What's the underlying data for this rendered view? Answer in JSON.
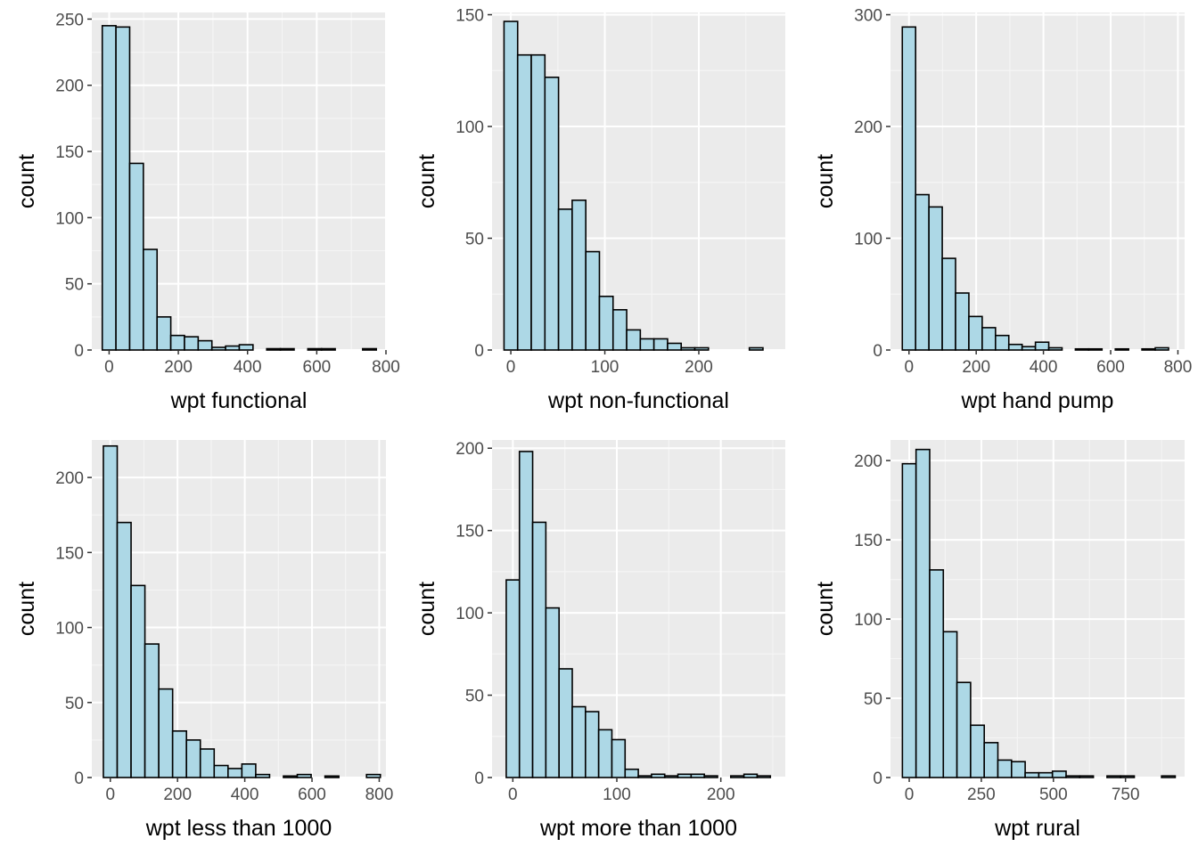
{
  "colors": {
    "panel_background": "#ebebeb",
    "grid_major": "#ffffff",
    "bar_fill": "#add8e6",
    "bar_stroke": "#000000",
    "tick_text": "#4d4d4d",
    "axis_title": "#000000"
  },
  "chart_data": [
    {
      "type": "bar",
      "title": "",
      "xlabel": "wpt functional",
      "ylabel": "count",
      "grid": true,
      "xlim": [
        -50,
        800
      ],
      "ylim": [
        0,
        255
      ],
      "xticks": [
        0,
        200,
        400,
        600,
        800
      ],
      "yticks": [
        0,
        50,
        100,
        150,
        200,
        250
      ],
      "bin_width": 39.6,
      "bin_start": -19.8,
      "values": [
        245,
        244,
        141,
        76,
        25,
        11,
        10,
        7,
        2,
        3,
        4,
        0,
        1,
        1,
        0,
        1,
        1,
        0,
        0,
        1
      ]
    },
    {
      "type": "bar",
      "title": "",
      "xlabel": "wpt non-functional",
      "ylabel": "count",
      "grid": true,
      "xlim": [
        -20,
        292
      ],
      "ylim": [
        0,
        151
      ],
      "xticks": [
        0,
        100,
        200
      ],
      "yticks": [
        0,
        50,
        100,
        150
      ],
      "bin_width": 14.5,
      "bin_start": -7.25,
      "values": [
        147,
        132,
        132,
        122,
        63,
        67,
        44,
        24,
        18,
        9,
        5,
        5,
        3,
        1,
        1,
        0,
        0,
        0,
        1
      ]
    },
    {
      "type": "bar",
      "title": "",
      "xlabel": "wpt hand pump",
      "ylabel": "count",
      "grid": true,
      "xlim": [
        -55,
        820
      ],
      "ylim": [
        0,
        302
      ],
      "xticks": [
        0,
        200,
        400,
        600,
        800
      ],
      "yticks": [
        0,
        100,
        200,
        300
      ],
      "bin_width": 39.6,
      "bin_start": -19.8,
      "values": [
        289,
        139,
        128,
        82,
        51,
        30,
        20,
        13,
        5,
        3,
        7,
        2,
        0,
        1,
        1,
        0,
        1,
        0,
        1,
        2
      ]
    },
    {
      "type": "bar",
      "title": "",
      "xlabel": "wpt less than 1000",
      "ylabel": "count",
      "grid": true,
      "xlim": [
        -55,
        820
      ],
      "ylim": [
        0,
        225
      ],
      "xticks": [
        0,
        200,
        400,
        600,
        800
      ],
      "yticks": [
        0,
        50,
        100,
        150,
        200
      ],
      "bin_width": 41.2,
      "bin_start": -20.6,
      "values": [
        221,
        170,
        128,
        89,
        59,
        31,
        25,
        19,
        8,
        6,
        9,
        2,
        0,
        1,
        2,
        0,
        1,
        0,
        0,
        2
      ]
    },
    {
      "type": "bar",
      "title": "",
      "xlabel": "wpt more than 1000",
      "ylabel": "count",
      "grid": true,
      "xlim": [
        -20,
        262
      ],
      "ylim": [
        0,
        205
      ],
      "xticks": [
        0,
        100,
        200
      ],
      "yticks": [
        0,
        50,
        100,
        150,
        200
      ],
      "bin_width": 12.7,
      "bin_start": -6.35,
      "values": [
        120,
        198,
        155,
        103,
        66,
        43,
        40,
        29,
        23,
        5,
        1,
        2,
        1,
        2,
        2,
        1,
        0,
        1,
        2,
        1
      ]
    },
    {
      "type": "bar",
      "title": "",
      "xlabel": "wpt rural",
      "ylabel": "count",
      "grid": true,
      "xlim": [
        -65,
        955
      ],
      "ylim": [
        0,
        213
      ],
      "xticks": [
        0,
        250,
        500,
        750
      ],
      "yticks": [
        0,
        50,
        100,
        150,
        200
      ],
      "bin_width": 47.3,
      "bin_start": -23.65,
      "values": [
        198,
        207,
        131,
        92,
        60,
        33,
        22,
        11,
        10,
        3,
        3,
        4,
        1,
        1,
        0,
        1,
        1,
        0,
        0,
        1
      ]
    }
  ]
}
